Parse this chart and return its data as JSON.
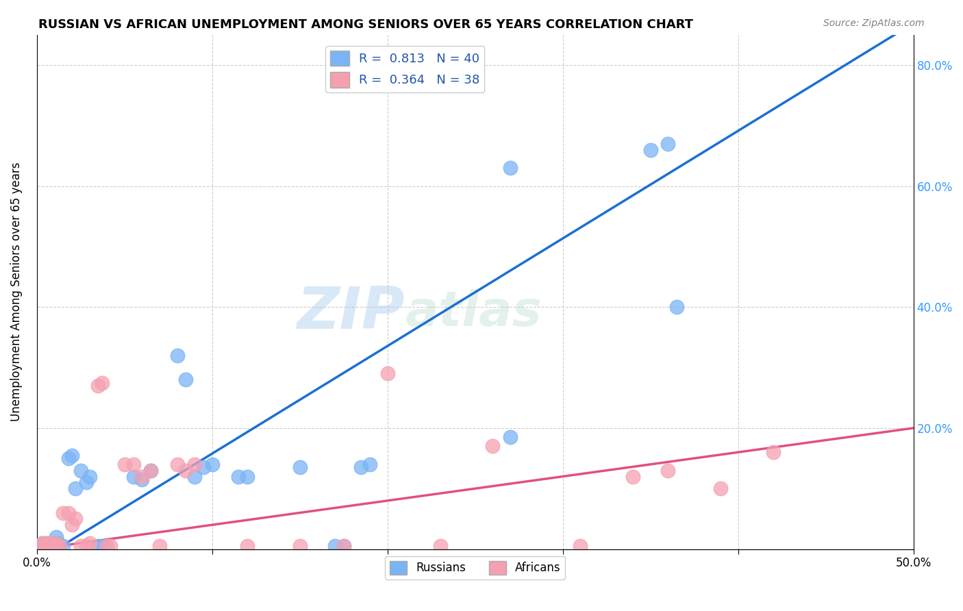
{
  "title": "RUSSIAN VS AFRICAN UNEMPLOYMENT AMONG SENIORS OVER 65 YEARS CORRELATION CHART",
  "source": "Source: ZipAtlas.com",
  "ylabel": "Unemployment Among Seniors over 65 years",
  "xlim": [
    0.0,
    0.5
  ],
  "ylim": [
    0.0,
    0.85
  ],
  "yticks": [
    0.0,
    0.2,
    0.4,
    0.6,
    0.8
  ],
  "ytick_labels": [
    "",
    "20.0%",
    "40.0%",
    "60.0%",
    "80.0%"
  ],
  "legend_russian_r": "0.813",
  "legend_russian_n": "40",
  "legend_african_r": "0.364",
  "legend_african_n": "38",
  "russian_color": "#7ab4f5",
  "african_color": "#f5a0b0",
  "russian_line_color": "#1a6fd4",
  "african_line_color": "#e05080",
  "trend_line_color": "#b0b0b0",
  "watermark_zip": "ZIP",
  "watermark_atlas": "atlas",
  "russian_points": [
    [
      0.001,
      0.005
    ],
    [
      0.003,
      0.01
    ],
    [
      0.004,
      0.005
    ],
    [
      0.005,
      0.01
    ],
    [
      0.007,
      0.005
    ],
    [
      0.008,
      0.01
    ],
    [
      0.009,
      0.005
    ],
    [
      0.01,
      0.01
    ],
    [
      0.011,
      0.02
    ],
    [
      0.012,
      0.01
    ],
    [
      0.013,
      0.005
    ],
    [
      0.015,
      0.005
    ],
    [
      0.018,
      0.15
    ],
    [
      0.02,
      0.155
    ],
    [
      0.022,
      0.1
    ],
    [
      0.025,
      0.13
    ],
    [
      0.028,
      0.11
    ],
    [
      0.03,
      0.12
    ],
    [
      0.035,
      0.005
    ],
    [
      0.038,
      0.005
    ],
    [
      0.055,
      0.12
    ],
    [
      0.06,
      0.115
    ],
    [
      0.065,
      0.13
    ],
    [
      0.08,
      0.32
    ],
    [
      0.085,
      0.28
    ],
    [
      0.09,
      0.12
    ],
    [
      0.095,
      0.135
    ],
    [
      0.1,
      0.14
    ],
    [
      0.115,
      0.12
    ],
    [
      0.12,
      0.12
    ],
    [
      0.15,
      0.135
    ],
    [
      0.17,
      0.005
    ],
    [
      0.175,
      0.005
    ],
    [
      0.185,
      0.135
    ],
    [
      0.19,
      0.14
    ],
    [
      0.27,
      0.185
    ],
    [
      0.35,
      0.66
    ],
    [
      0.36,
      0.67
    ],
    [
      0.365,
      0.4
    ],
    [
      0.27,
      0.63
    ]
  ],
  "african_points": [
    [
      0.001,
      0.005
    ],
    [
      0.003,
      0.01
    ],
    [
      0.005,
      0.005
    ],
    [
      0.006,
      0.01
    ],
    [
      0.008,
      0.01
    ],
    [
      0.01,
      0.005
    ],
    [
      0.011,
      0.01
    ],
    [
      0.013,
      0.005
    ],
    [
      0.015,
      0.06
    ],
    [
      0.018,
      0.06
    ],
    [
      0.02,
      0.04
    ],
    [
      0.022,
      0.05
    ],
    [
      0.025,
      0.005
    ],
    [
      0.028,
      0.005
    ],
    [
      0.03,
      0.01
    ],
    [
      0.035,
      0.27
    ],
    [
      0.037,
      0.275
    ],
    [
      0.04,
      0.005
    ],
    [
      0.042,
      0.005
    ],
    [
      0.05,
      0.14
    ],
    [
      0.055,
      0.14
    ],
    [
      0.06,
      0.12
    ],
    [
      0.065,
      0.13
    ],
    [
      0.07,
      0.005
    ],
    [
      0.08,
      0.14
    ],
    [
      0.085,
      0.13
    ],
    [
      0.09,
      0.14
    ],
    [
      0.12,
      0.005
    ],
    [
      0.15,
      0.005
    ],
    [
      0.175,
      0.005
    ],
    [
      0.2,
      0.29
    ],
    [
      0.23,
      0.005
    ],
    [
      0.26,
      0.17
    ],
    [
      0.31,
      0.005
    ],
    [
      0.34,
      0.12
    ],
    [
      0.36,
      0.13
    ],
    [
      0.39,
      0.1
    ],
    [
      0.42,
      0.16
    ]
  ],
  "russian_slope": 1.778,
  "russian_intercept": -0.02,
  "african_slope": 0.4,
  "african_intercept": 0.0
}
